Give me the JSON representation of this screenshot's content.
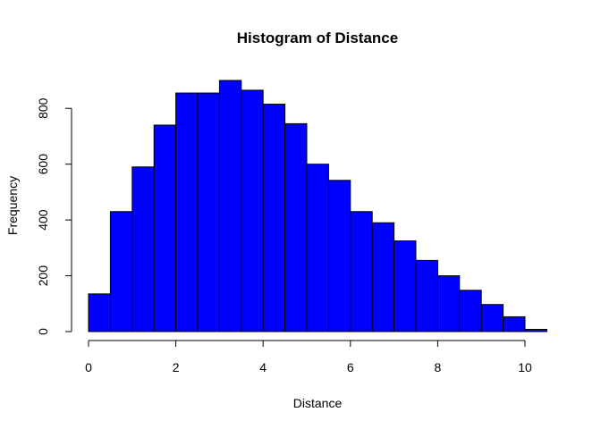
{
  "chart_data": {
    "type": "bar",
    "title": "Histogram of Distance",
    "xlabel": "Distance",
    "ylabel": "Frequency",
    "bar_color": "#0000ff",
    "border_color": "#000000",
    "bin_width": 0.5,
    "bins": [
      {
        "x0": 0.0,
        "x1": 0.5,
        "count": 135
      },
      {
        "x0": 0.5,
        "x1": 1.0,
        "count": 430
      },
      {
        "x0": 1.0,
        "x1": 1.5,
        "count": 590
      },
      {
        "x0": 1.5,
        "x1": 2.0,
        "count": 740
      },
      {
        "x0": 2.0,
        "x1": 2.5,
        "count": 855
      },
      {
        "x0": 2.5,
        "x1": 3.0,
        "count": 855
      },
      {
        "x0": 3.0,
        "x1": 3.5,
        "count": 900
      },
      {
        "x0": 3.5,
        "x1": 4.0,
        "count": 865
      },
      {
        "x0": 4.0,
        "x1": 4.5,
        "count": 815
      },
      {
        "x0": 4.5,
        "x1": 5.0,
        "count": 745
      },
      {
        "x0": 5.0,
        "x1": 5.5,
        "count": 600
      },
      {
        "x0": 5.5,
        "x1": 6.0,
        "count": 542
      },
      {
        "x0": 6.0,
        "x1": 6.5,
        "count": 430
      },
      {
        "x0": 6.5,
        "x1": 7.0,
        "count": 390
      },
      {
        "x0": 7.0,
        "x1": 7.5,
        "count": 325
      },
      {
        "x0": 7.5,
        "x1": 8.0,
        "count": 255
      },
      {
        "x0": 8.0,
        "x1": 8.5,
        "count": 200
      },
      {
        "x0": 8.5,
        "x1": 9.0,
        "count": 148
      },
      {
        "x0": 9.0,
        "x1": 9.5,
        "count": 97
      },
      {
        "x0": 9.5,
        "x1": 10.0,
        "count": 53
      },
      {
        "x0": 10.0,
        "x1": 10.5,
        "count": 8
      }
    ],
    "xlim": [
      0,
      10.5
    ],
    "ylim": [
      0,
      900
    ],
    "x_ticks": [
      0,
      2,
      4,
      6,
      8,
      10
    ],
    "x_tick_labels": [
      "0",
      "2",
      "4",
      "6",
      "8",
      "10"
    ],
    "y_ticks": [
      0,
      200,
      400,
      600,
      800
    ],
    "y_tick_labels": [
      "0",
      "200",
      "400",
      "600",
      "800"
    ],
    "grid": false
  }
}
